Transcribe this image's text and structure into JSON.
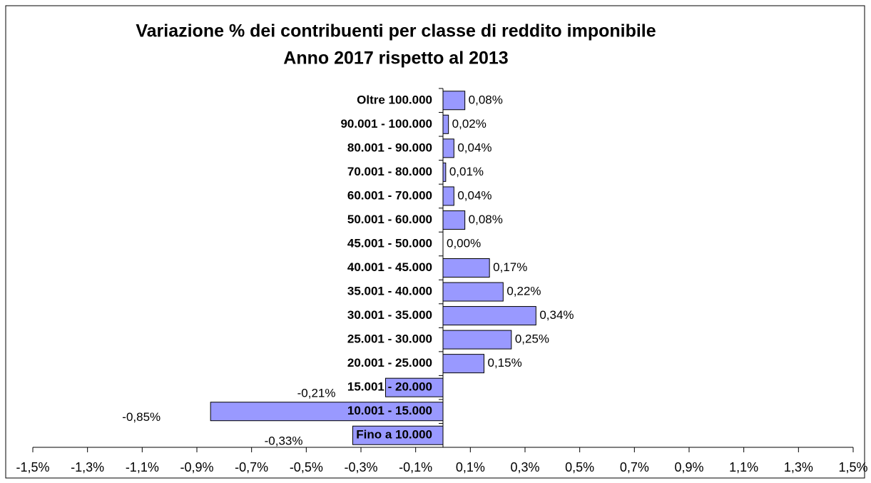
{
  "chart_data": {
    "type": "hbar",
    "title": "Variazione % dei contribuenti per classe di reddito imponibile",
    "subtitle": "Anno 2017 rispetto al 2013",
    "categories": [
      "Oltre 100.000",
      "90.001 - 100.000",
      "80.001 - 90.000",
      "70.001 - 80.000",
      "60.001 - 70.000",
      "50.001 - 60.000",
      "45.001 - 50.000",
      "40.001 - 45.000",
      "35.001 - 40.000",
      "30.001 - 35.000",
      "25.001 - 30.000",
      "20.001 - 25.000",
      "15.001 - 20.000",
      "10.001 - 15.000",
      "Fino a 10.000"
    ],
    "values": [
      0.08,
      0.02,
      0.04,
      0.01,
      0.04,
      0.08,
      0.0,
      0.17,
      0.22,
      0.34,
      0.25,
      0.15,
      -0.21,
      -0.85,
      -0.33
    ],
    "value_labels": [
      "0,08%",
      "0,02%",
      "0,04%",
      "0,01%",
      "0,04%",
      "0,08%",
      "0,00%",
      "0,17%",
      "0,22%",
      "0,34%",
      "0,25%",
      "0,15%",
      "-0,21%",
      "-0,85%",
      "-0,33%"
    ],
    "color": "#9999ff",
    "xlim": [
      -1.5,
      1.5
    ],
    "xticks": [
      {
        "value": -1.5,
        "label": "-1,5%"
      },
      {
        "value": -1.3,
        "label": "-1,3%"
      },
      {
        "value": -1.1,
        "label": "-1,1%"
      },
      {
        "value": -0.9,
        "label": "-0,9%"
      },
      {
        "value": -0.7,
        "label": "-0,7%"
      },
      {
        "value": -0.5,
        "label": "-0,5%"
      },
      {
        "value": -0.3,
        "label": "-0,3%"
      },
      {
        "value": -0.1,
        "label": "-0,1%"
      },
      {
        "value": 0.1,
        "label": "0,1%"
      },
      {
        "value": 0.3,
        "label": "0,3%"
      },
      {
        "value": 0.5,
        "label": "0,5%"
      },
      {
        "value": 0.7,
        "label": "0,7%"
      },
      {
        "value": 0.9,
        "label": "0,9%"
      },
      {
        "value": 1.1,
        "label": "1,1%"
      },
      {
        "value": 1.3,
        "label": "1,3%"
      },
      {
        "value": 1.5,
        "label": "1,5%"
      }
    ],
    "grid": false
  }
}
